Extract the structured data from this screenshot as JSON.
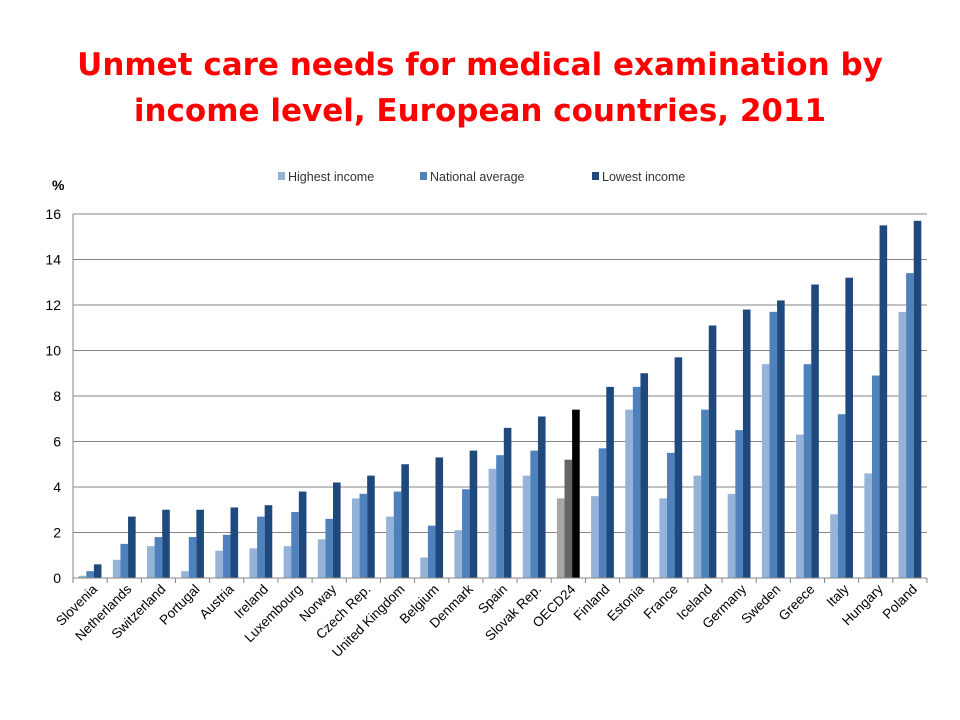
{
  "chart_data": {
    "type": "bar",
    "title_lines": [
      "Unmet care needs for medical examination by",
      "income level, European countries, 2011"
    ],
    "ylabel": "%",
    "ylim": [
      0,
      16
    ],
    "yticks": [
      0,
      2,
      4,
      6,
      8,
      10,
      12,
      14,
      16
    ],
    "grid": true,
    "legend_position": "top-center",
    "categories": [
      "Slovenia",
      "Netherlands",
      "Switzerland",
      "Portugal",
      "Austria",
      "Ireland",
      "Luxembourg",
      "Norway",
      "Czech Rep.",
      "United Kingdom",
      "Belgium",
      "Denmark",
      "Spain",
      "Slovak Rep.",
      "OECD24",
      "Finland",
      "Estonia",
      "France",
      "Iceland",
      "Germany",
      "Sweden",
      "Greece",
      "Italy",
      "Hungary",
      "Poland"
    ],
    "highlight_category": "OECD24",
    "highlight_colors": [
      "#a6a6a6",
      "#666666",
      "#000000"
    ],
    "series": [
      {
        "name": "Highest income",
        "color": "#95b3d7",
        "values": [
          0.1,
          0.8,
          1.4,
          0.3,
          1.2,
          1.3,
          1.4,
          1.7,
          3.5,
          2.7,
          0.9,
          2.1,
          4.8,
          4.5,
          3.5,
          3.6,
          7.4,
          3.5,
          4.5,
          3.7,
          9.4,
          6.3,
          2.8,
          4.6,
          11.7
        ]
      },
      {
        "name": "National average",
        "color": "#4f81bd",
        "values": [
          0.3,
          1.5,
          1.8,
          1.8,
          1.9,
          2.7,
          2.9,
          2.6,
          3.7,
          3.8,
          2.3,
          3.9,
          5.4,
          5.6,
          5.2,
          5.7,
          8.4,
          5.5,
          7.4,
          6.5,
          11.7,
          9.4,
          7.2,
          8.9,
          13.4
        ]
      },
      {
        "name": "Lowest income",
        "color": "#1f497d",
        "values": [
          0.6,
          2.7,
          3.0,
          3.0,
          3.1,
          3.2,
          3.8,
          4.2,
          4.5,
          5.0,
          5.3,
          5.6,
          6.6,
          7.1,
          7.4,
          8.4,
          9.0,
          9.7,
          11.1,
          11.8,
          12.2,
          12.9,
          13.2,
          15.5,
          15.7
        ]
      }
    ]
  }
}
